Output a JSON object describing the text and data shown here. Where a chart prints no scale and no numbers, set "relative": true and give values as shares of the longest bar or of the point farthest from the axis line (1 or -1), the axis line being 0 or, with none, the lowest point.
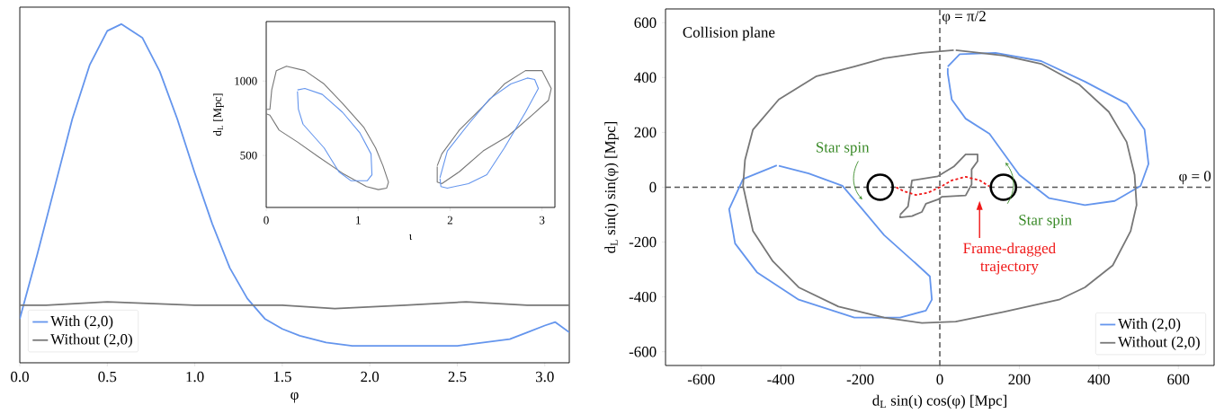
{
  "chart_data": [
    {
      "type": "line",
      "xlabel": "φ",
      "relative": true,
      "xlim": [
        0,
        3.14
      ],
      "legend": "bottom left",
      "xticks": [
        {
          "value": 0,
          "label": "0.0"
        },
        0.5,
        {
          "value": 1,
          "label": "1.0"
        },
        1.5,
        {
          "value": 2,
          "label": "2.0"
        },
        2.5,
        {
          "value": 3,
          "label": "3.0"
        }
      ],
      "series": [
        {
          "name": "With (2,0)",
          "color": "#6495ed",
          "x": [
            0,
            0.1,
            0.2,
            0.3,
            0.4,
            0.5,
            0.58,
            0.7,
            0.8,
            0.9,
            1.0,
            1.1,
            1.2,
            1.3,
            1.4,
            1.5,
            1.6,
            1.75,
            1.9,
            2.05,
            2.2,
            2.3,
            2.5,
            2.65,
            2.8,
            2.9,
            3.0,
            3.06,
            3.14
          ],
          "values": [
            0.13,
            0.32,
            0.52,
            0.72,
            0.88,
            0.98,
            1,
            0.96,
            0.86,
            0.72,
            0.56,
            0.41,
            0.28,
            0.19,
            0.13,
            0.1,
            0.08,
            0.06,
            0.05,
            0.05,
            0.05,
            0.05,
            0.05,
            0.06,
            0.07,
            0.09,
            0.11,
            0.12,
            0.09
          ]
        },
        {
          "name": "Without (2,0)",
          "color": "#777777",
          "x": [
            0,
            0.15,
            0.5,
            1.0,
            1.5,
            1.8,
            2.2,
            2.55,
            2.9,
            3.14
          ],
          "values": [
            0.17,
            0.17,
            0.18,
            0.17,
            0.17,
            0.16,
            0.17,
            0.18,
            0.17,
            0.17
          ]
        }
      ]
    },
    {
      "type": "line",
      "xlabel": "ι",
      "ylabel": "d$_{L}$ [Mpc]",
      "xlim": [
        0,
        3.14
      ],
      "ylim": [
        150,
        1400
      ],
      "xticks": [
        0,
        1,
        2,
        3
      ],
      "yticks": [
        500,
        1000
      ],
      "series": [
        {
          "color": "#777777",
          "x": [
            0,
            0.04,
            0.06,
            0.11,
            0.22,
            0.42,
            0.63,
            0.83,
            1.06,
            1.19,
            1.27,
            1.33,
            1.31,
            1.22,
            1.09,
            0.83,
            0.57,
            0.34,
            0.14,
            0.04,
            0
          ],
          "values": [
            810,
            810,
            940,
            1070,
            1100,
            1070,
            980,
            850,
            690,
            550,
            430,
            320,
            280,
            270,
            290,
            380,
            490,
            590,
            670,
            770,
            780
          ]
        },
        {
          "color": "#777777",
          "x": [
            1.86,
            1.91,
            2.1,
            2.36,
            2.59,
            2.82,
            3.0,
            3.1,
            3.07,
            2.89,
            2.63,
            2.36,
            2.1,
            1.91,
            1.86,
            1.86
          ],
          "values": [
            430,
            510,
            670,
            830,
            980,
            1070,
            1070,
            950,
            870,
            770,
            630,
            530,
            390,
            310,
            320,
            425
          ]
        },
        {
          "color": "#6495ed",
          "x": [
            0.34,
            0.42,
            0.61,
            0.83,
            1.02,
            1.14,
            1.15,
            1.1,
            0.92,
            0.79,
            0.63,
            0.4,
            0.35,
            0.34
          ],
          "values": [
            940,
            950,
            910,
            790,
            650,
            510,
            370,
            330,
            330,
            390,
            550,
            710,
            810,
            930
          ]
        },
        {
          "color": "#6495ed",
          "x": [
            1.89,
            1.97,
            2.2,
            2.43,
            2.66,
            2.84,
            2.92,
            2.96,
            2.82,
            2.59,
            2.4,
            2.2,
            1.97,
            1.9,
            1.89
          ],
          "values": [
            350,
            530,
            710,
            880,
            980,
            1020,
            1010,
            950,
            790,
            550,
            370,
            310,
            280,
            290,
            345
          ]
        }
      ]
    },
    {
      "type": "line",
      "xlabel": "d$_{L}$ sin(ι) cos(φ) [Mpc]",
      "ylabel": "d$_{L}$ sin(ι) sin(φ) [Mpc]",
      "xlim": [
        -690,
        690
      ],
      "ylim": [
        -650,
        650
      ],
      "xticks": [
        -600,
        -400,
        -200,
        0,
        200,
        400,
        600
      ],
      "yticks": [
        -600,
        -400,
        -200,
        0,
        200,
        400,
        600
      ],
      "legend": "bottom right",
      "ref_lines": [
        {
          "axis": "x",
          "value": 0,
          "label": "φ = π/2",
          "color": "#555555",
          "line_style": "dashed"
        },
        {
          "axis": "y",
          "value": 0,
          "label": "φ = 0",
          "color": "#555555",
          "line_style": "dashed"
        }
      ],
      "annotations": [
        "Collision plane",
        "Star spin",
        {
          "text": "Star spin",
          "x": 165,
          "y": 90
        },
        "Frame-dragged trajectory"
      ],
      "series": [
        {
          "name": "With (2,0)",
          "color": "#6495ed",
          "x": [
            20,
            50,
            140,
            255,
            365,
            470,
            515,
            525,
            505,
            440,
            365,
            275,
            200,
            125,
            65,
            30,
            20,
            20
          ],
          "values": [
            440,
            485,
            490,
            460,
            385,
            305,
            210,
            85,
            5,
            -50,
            -65,
            -40,
            45,
            195,
            250,
            320,
            415,
            435
          ]
        },
        {
          "color": "#6495ed",
          "x": [
            -410,
            -495,
            -530,
            -515,
            -460,
            -355,
            -215,
            -100,
            -35,
            -20,
            -25,
            -55,
            -140,
            -195,
            -245,
            -330,
            -405
          ],
          "values": [
            80,
            30,
            -80,
            -205,
            -310,
            -410,
            -475,
            -475,
            -450,
            -410,
            -325,
            -285,
            -175,
            -80,
            5,
            50,
            78
          ]
        },
        {
          "name": "Without (2,0)",
          "color": "#777777",
          "x": [
            40,
            160,
            255,
            350,
            425,
            470,
            490,
            495,
            480,
            435,
            365,
            300,
            160,
            40,
            -45,
            -140,
            -255,
            -355,
            -420,
            -470,
            -495,
            -490,
            -470,
            -405,
            -310,
            -215,
            -140,
            -45,
            35
          ],
          "values": [
            500,
            480,
            450,
            375,
            275,
            165,
            45,
            -65,
            -160,
            -285,
            -365,
            -410,
            -455,
            -490,
            -495,
            -475,
            -435,
            -365,
            -270,
            -160,
            5,
            100,
            210,
            320,
            405,
            440,
            470,
            490,
            500
          ]
        },
        {
          "color": "#777777",
          "x": [
            -100,
            -80,
            -70,
            -5,
            35,
            65,
            95,
            95,
            80,
            80,
            65,
            5,
            -5,
            -35,
            -45,
            -70,
            -100,
            -100
          ],
          "values": [
            -100,
            -70,
            25,
            40,
            75,
            120,
            120,
            95,
            65,
            10,
            -30,
            -35,
            -45,
            -60,
            -90,
            -105,
            -110,
            -102
          ]
        },
        {
          "color": "#f01818",
          "line_style": "dashed",
          "x": [
            -110,
            -90,
            -60,
            -30,
            0,
            30,
            65,
            100,
            125
          ],
          "values": [
            0,
            -15,
            -28,
            -20,
            0,
            25,
            38,
            25,
            3
          ]
        }
      ]
    }
  ]
}
